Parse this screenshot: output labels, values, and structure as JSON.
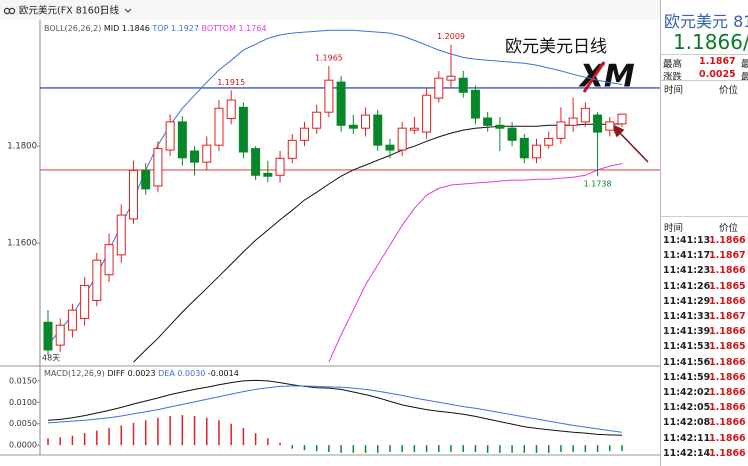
{
  "chart_data": [
    {
      "type": "candlestick",
      "header": "欧元美元(FX 8160)",
      "period": "日线",
      "indicator": "BOLL(26,26,2)",
      "overlay_title": "欧元美元日线",
      "logo": "XM",
      "note": "48天",
      "up_color": "#e02020",
      "down_color": "#08862a",
      "open": [
        1.1437,
        1.139,
        1.1421,
        1.1445,
        1.1482,
        1.1535,
        1.1576,
        1.165,
        1.175,
        1.1718,
        1.1792,
        1.185,
        1.179,
        1.1767,
        1.1802,
        1.1857,
        1.188,
        1.1795,
        1.1744,
        1.174,
        1.1775,
        1.1812,
        1.1837,
        1.187,
        1.1932,
        1.1843,
        1.1837,
        1.1864,
        1.1802,
        1.1792,
        1.1833,
        1.1829,
        1.1899,
        1.1936,
        1.194,
        1.1915,
        1.1858,
        1.1843,
        1.1837,
        1.1816,
        1.1776,
        1.1802,
        1.1816,
        1.1843,
        1.185,
        1.1864,
        1.1833,
        1.1846
      ],
      "high": [
        1.1462,
        1.1445,
        1.1475,
        1.153,
        1.158,
        1.162,
        1.168,
        1.177,
        1.1765,
        1.181,
        1.1865,
        1.1862,
        1.18,
        1.182,
        1.1895,
        1.1915,
        1.189,
        1.18,
        1.177,
        1.179,
        1.1825,
        1.185,
        1.1885,
        1.1965,
        1.1945,
        1.1865,
        1.188,
        1.1875,
        1.1815,
        1.185,
        1.186,
        1.192,
        1.1955,
        1.2009,
        1.1955,
        1.1925,
        1.187,
        1.186,
        1.185,
        1.1825,
        1.1815,
        1.183,
        1.188,
        1.19,
        1.189,
        1.187,
        1.186,
        1.1867
      ],
      "low": [
        1.1369,
        1.1376,
        1.1405,
        1.143,
        1.147,
        1.152,
        1.156,
        1.164,
        1.17,
        1.1705,
        1.178,
        1.176,
        1.174,
        1.175,
        1.179,
        1.1845,
        1.1775,
        1.173,
        1.1726,
        1.1725,
        1.1765,
        1.18,
        1.1825,
        1.186,
        1.183,
        1.1825,
        1.182,
        1.179,
        1.1775,
        1.178,
        1.1825,
        1.1815,
        1.189,
        1.192,
        1.19,
        1.1845,
        1.183,
        1.179,
        1.18,
        1.1765,
        1.1765,
        1.1795,
        1.1805,
        1.183,
        1.184,
        1.1738,
        1.182,
        1.184
      ],
      "close": [
        1.138,
        1.1431,
        1.1462,
        1.1513,
        1.1565,
        1.1597,
        1.1658,
        1.175,
        1.1712,
        1.1795,
        1.185,
        1.1776,
        1.1767,
        1.1802,
        1.1878,
        1.1895,
        1.1788,
        1.174,
        1.1738,
        1.1775,
        1.1812,
        1.1837,
        1.187,
        1.1936,
        1.1843,
        1.1837,
        1.1864,
        1.1802,
        1.1792,
        1.1837,
        1.1837,
        1.1905,
        1.194,
        1.1944,
        1.1911,
        1.1858,
        1.1843,
        1.1837,
        1.1812,
        1.1776,
        1.1802,
        1.1816,
        1.185,
        1.1858,
        1.1878,
        1.1829,
        1.185,
        1.1866
      ],
      "series": [
        {
          "name": "MID",
          "color": "#111111",
          "values": [
            null,
            null,
            null,
            null,
            null,
            null,
            null,
            1.1355,
            1.138,
            1.1404,
            1.1431,
            1.1458,
            1.1483,
            1.1507,
            1.1532,
            1.1557,
            1.1582,
            1.1606,
            1.1627,
            1.1648,
            1.1668,
            1.1689,
            1.1705,
            1.1722,
            1.1738,
            1.1751,
            1.1761,
            1.1771,
            1.1781,
            1.1792,
            1.18,
            1.181,
            1.1819,
            1.1827,
            1.1833,
            1.1837,
            1.1839,
            1.1841,
            1.1841,
            1.1841,
            1.1841,
            1.1843,
            1.1843,
            1.1843,
            1.1845,
            1.1845,
            1.1845,
            1.1846
          ]
        },
        {
          "name": "TOP",
          "color": "#3f73d6",
          "values": [
            1.139,
            1.1421,
            1.1452,
            1.1493,
            1.1534,
            1.1586,
            1.1637,
            1.1689,
            1.1751,
            1.1802,
            1.1843,
            1.1878,
            1.1905,
            1.1932,
            1.1957,
            1.1977,
            1.1998,
            1.201,
            1.2022,
            1.2029,
            1.2033,
            1.2035,
            1.2037,
            1.2039,
            1.2039,
            1.2039,
            1.2037,
            1.2035,
            1.2033,
            1.2027,
            1.2018,
            1.2008,
            1.1998,
            1.199,
            1.1983,
            1.1979,
            1.1977,
            1.1975,
            1.1973,
            1.1971,
            1.1967,
            1.1961,
            1.1955,
            1.1948,
            1.1942,
            1.1936,
            1.1931,
            1.1927
          ]
        },
        {
          "name": "BOTTOM",
          "color": "#e23ce0",
          "values": [
            null,
            null,
            null,
            null,
            null,
            null,
            null,
            null,
            null,
            null,
            null,
            null,
            null,
            null,
            null,
            null,
            null,
            null,
            null,
            null,
            null,
            null,
            null,
            1.1355,
            1.1411,
            1.1462,
            1.1514,
            1.1555,
            1.1596,
            1.1637,
            1.1672,
            1.1699,
            1.1713,
            1.172,
            1.1722,
            1.1724,
            1.1726,
            1.1728,
            1.173,
            1.173,
            1.1732,
            1.1732,
            1.1734,
            1.1736,
            1.174,
            1.1751,
            1.1759,
            1.1764
          ]
        }
      ],
      "hlines": [
        {
          "value": 1.192,
          "color": "#1c2fa6"
        },
        {
          "value": 1.1751,
          "color": "#e0504a"
        }
      ],
      "high_labels": [
        1.1915,
        1.1965,
        1.2009
      ],
      "low_labels": [
        1.1738
      ],
      "ylim": [
        1.1349,
        1.206
      ],
      "yticks": [
        {
          "value": 1.18,
          "label": "1.1800"
        },
        {
          "value": 1.16,
          "label": "1.1600"
        }
      ]
    },
    {
      "type": "macd",
      "indicator": "MACD(12,26,9)",
      "series": [
        {
          "name": "DIFF",
          "color": "#111111",
          "current_label": "0.0023",
          "values": [
            0.0058,
            0.006,
            0.0064,
            0.0069,
            0.0075,
            0.0081,
            0.0088,
            0.0096,
            0.0103,
            0.011,
            0.0118,
            0.0124,
            0.013,
            0.0135,
            0.0141,
            0.0146,
            0.015,
            0.0151,
            0.015,
            0.0146,
            0.0141,
            0.0137,
            0.0134,
            0.0133,
            0.013,
            0.0124,
            0.0118,
            0.0111,
            0.0102,
            0.0094,
            0.0088,
            0.0083,
            0.0079,
            0.0076,
            0.0072,
            0.0067,
            0.0061,
            0.0055,
            0.0049,
            0.0043,
            0.0039,
            0.0036,
            0.0033,
            0.003,
            0.0028,
            0.0025,
            0.0024,
            0.0023
          ]
        },
        {
          "name": "DEA",
          "color": "#3f73d6",
          "current_label": "0.0030",
          "values": [
            0.0052,
            0.0054,
            0.0056,
            0.0058,
            0.0061,
            0.0064,
            0.0068,
            0.0073,
            0.0078,
            0.0083,
            0.0089,
            0.0095,
            0.0101,
            0.0107,
            0.0113,
            0.0119,
            0.0125,
            0.013,
            0.0134,
            0.0137,
            0.0138,
            0.0138,
            0.0137,
            0.0136,
            0.0135,
            0.0133,
            0.013,
            0.0126,
            0.0121,
            0.0116,
            0.011,
            0.0105,
            0.01,
            0.0095,
            0.009,
            0.0086,
            0.0081,
            0.0076,
            0.0071,
            0.0066,
            0.0061,
            0.0056,
            0.0051,
            0.0046,
            0.0042,
            0.0038,
            0.0034,
            0.003
          ]
        }
      ],
      "values": [
        0.0016,
        0.0018,
        0.0022,
        0.0028,
        0.0034,
        0.004,
        0.0046,
        0.0052,
        0.0058,
        0.0064,
        0.0068,
        0.007,
        0.0068,
        0.0064,
        0.0058,
        0.005,
        0.004,
        0.0028,
        0.0016,
        0.0006,
        -0.0008,
        -0.0012,
        -0.0014,
        -0.0016,
        -0.0018,
        -0.0018,
        -0.0018,
        -0.0018,
        -0.0016,
        -0.0016,
        -0.0016,
        -0.0016,
        -0.0016,
        -0.0016,
        -0.0016,
        -0.0016,
        -0.0018,
        -0.0018,
        -0.0018,
        -0.0018,
        -0.0018,
        -0.0018,
        -0.0016,
        -0.0016,
        -0.0016,
        -0.0016,
        -0.0014,
        -0.0014
      ],
      "up_color": "#e02020",
      "down_color": "#08862a",
      "ylim": [
        -0.0023,
        0.018
      ],
      "yticks": [
        {
          "value": 0.015,
          "label": "0.0150"
        },
        {
          "value": 0.01,
          "label": "0.0100"
        },
        {
          "value": 0.005,
          "label": "0.0050"
        },
        {
          "value": 0,
          "label": "0.0000"
        }
      ]
    }
  ],
  "quote_panel": {
    "name": "欧元美元 81",
    "price": "1.1866/",
    "rows": [
      {
        "label": "最高",
        "value": "1.1867",
        "extra": "最"
      },
      {
        "label": "涨跌",
        "value": "0.0025",
        "extra": "最"
      }
    ],
    "header": [
      "时间",
      "价位"
    ],
    "trades_header": [
      "时间",
      "价位"
    ],
    "trades": [
      {
        "time": "11:41:13",
        "price": "1.1866"
      },
      {
        "time": "11:41:17",
        "price": "1.1867"
      },
      {
        "time": "11:41:23",
        "price": "1.1866"
      },
      {
        "time": "11:41:26",
        "price": "1.1865"
      },
      {
        "time": "11:41:29",
        "price": "1.1866"
      },
      {
        "time": "11:41:33",
        "price": "1.1867"
      },
      {
        "time": "11:41:39",
        "price": "1.1866"
      },
      {
        "time": "11:41:53",
        "price": "1.1865"
      },
      {
        "time": "11:41:56",
        "price": "1.1866"
      },
      {
        "time": "11:41:59",
        "price": "1.1866"
      },
      {
        "time": "11:42:02",
        "price": "1.1866"
      },
      {
        "time": "11:42:05",
        "price": "1.1866"
      },
      {
        "time": "11:42:08",
        "price": "1.1866"
      },
      {
        "time": "11:42:11",
        "price": "1.1866"
      },
      {
        "time": "11:42:14",
        "price": "1.1866"
      }
    ]
  }
}
